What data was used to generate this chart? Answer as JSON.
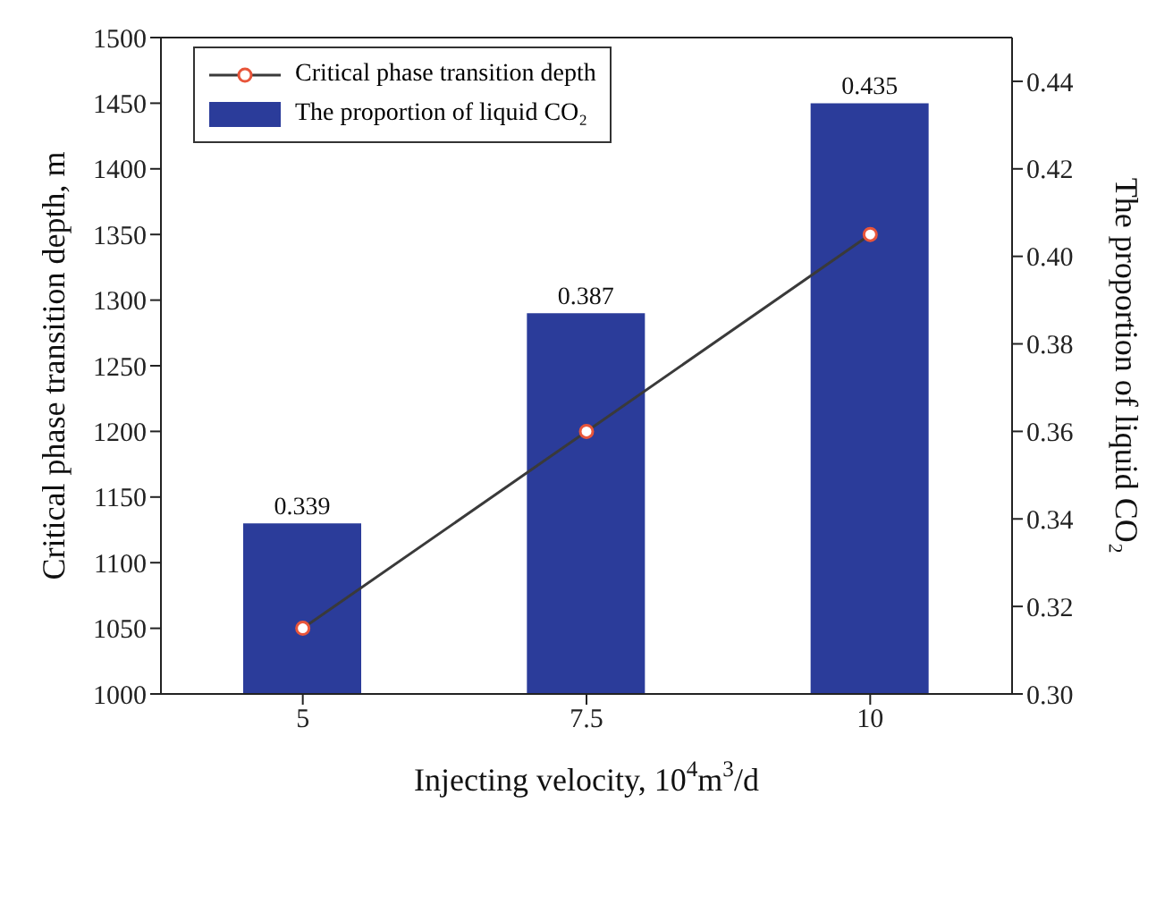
{
  "chart_data": {
    "type": "bar",
    "xlabel": "Injecting velocity, 10$^{4}$m$^{3}$/d",
    "ylabel": "Critical phase transition depth, m",
    "y2label": "The proportion of liquid CO₂",
    "categories": [
      "5",
      "7.5",
      "10"
    ],
    "series": [
      {
        "name": "Critical phase transition depth",
        "type": "line",
        "color": "#3a3a3a",
        "values": [
          1050,
          1200,
          1350
        ],
        "marker": "circle"
      },
      {
        "name": "The proportion of liquid CO₂",
        "axis": "y2",
        "color": "#2b3c9a",
        "values": [
          0.339,
          0.387,
          0.435
        ],
        "data_labels": true
      }
    ],
    "ylim": [
      1000,
      1500
    ],
    "yticks": [
      1000,
      1050,
      1100,
      1150,
      1200,
      1250,
      1300,
      1350,
      1400,
      1450,
      1500
    ],
    "y2lim": [
      0.3,
      0.45
    ],
    "y2ticks": [
      {
        "value": 0.3,
        "label": "0.30"
      },
      0.32,
      0.34,
      0.36,
      0.38,
      {
        "value": 0.4,
        "label": "0.40"
      },
      0.42,
      0.44
    ],
    "legend": "top left",
    "grid": false
  }
}
